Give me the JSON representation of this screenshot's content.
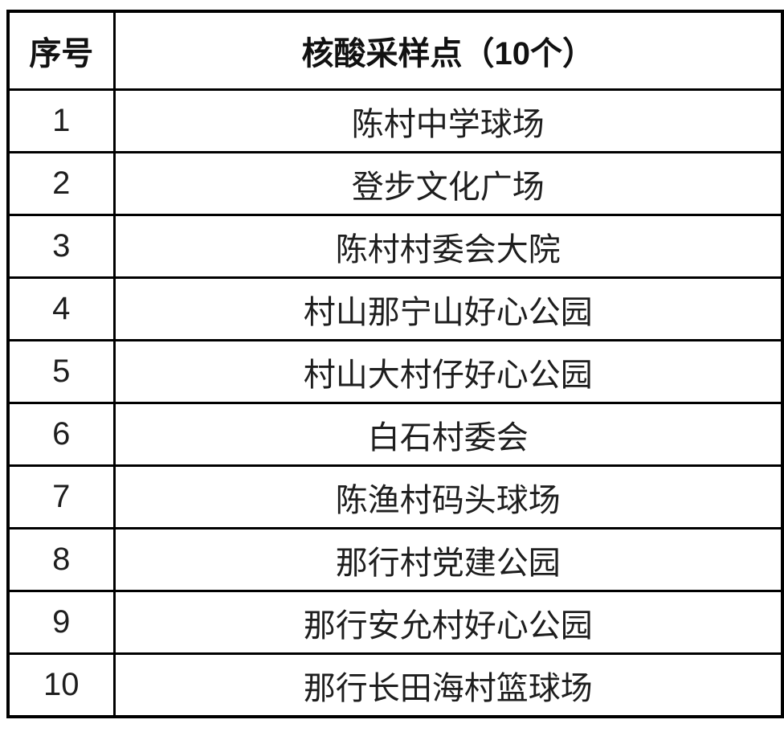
{
  "table": {
    "headers": [
      "序号",
      "核酸采样点（10个）"
    ],
    "rows": [
      {
        "no": "1",
        "site": "陈村中学球场"
      },
      {
        "no": "2",
        "site": "登步文化广场"
      },
      {
        "no": "3",
        "site": "陈村村委会大院"
      },
      {
        "no": "4",
        "site": "村山那宁山好心公园"
      },
      {
        "no": "5",
        "site": "村山大村仔好心公园"
      },
      {
        "no": "6",
        "site": "白石村委会"
      },
      {
        "no": "7",
        "site": "陈渔村码头球场"
      },
      {
        "no": "8",
        "site": "那行村党建公园"
      },
      {
        "no": "9",
        "site": "那行安允村好心公园"
      },
      {
        "no": "10",
        "site": "那行长田海村篮球场"
      }
    ],
    "colors": {
      "border": "#000000",
      "text": "#1e1e1e",
      "background": "#ffffff"
    }
  }
}
